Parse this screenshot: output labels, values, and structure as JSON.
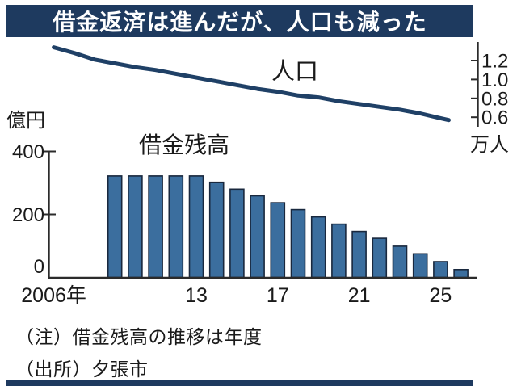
{
  "title": "借金返済は進んだが、人口も減った",
  "colors": {
    "title_bar": "#1E3A5F",
    "title_text": "#FFFFFF",
    "bar_fill": "#3B6E9E",
    "bar_stroke": "#19283E",
    "line": "#1F4066",
    "axis": "#2B2B2B",
    "text": "#1A1A1A",
    "background": "#FFFFFF"
  },
  "chart_data": {
    "type": "combo",
    "series": [
      {
        "type": "line",
        "name": "population",
        "label": "人口",
        "unit": "万人",
        "axis": "right",
        "x": [
          2006,
          2007,
          2008,
          2009,
          2010,
          2011,
          2012,
          2013,
          2014,
          2015,
          2016,
          2017,
          2018,
          2019,
          2020,
          2021,
          2022,
          2023,
          2024,
          2025,
          2025.4
        ],
        "values": [
          1.34,
          1.28,
          1.21,
          1.17,
          1.13,
          1.1,
          1.06,
          1.02,
          0.98,
          0.94,
          0.9,
          0.87,
          0.83,
          0.81,
          0.77,
          0.74,
          0.71,
          0.68,
          0.64,
          0.59,
          0.57
        ]
      },
      {
        "type": "bar",
        "name": "debt-balance",
        "label": "借金残高",
        "unit": "億円",
        "axis": "left",
        "x": [
          2009,
          2010,
          2011,
          2012,
          2013,
          2014,
          2015,
          2016,
          2017,
          2018,
          2019,
          2020,
          2021,
          2022,
          2023,
          2024,
          2025,
          2026
        ],
        "values": [
          322,
          322,
          322,
          322,
          322,
          302,
          280,
          259,
          237,
          215,
          192,
          169,
          146,
          124,
          99,
          75,
          50,
          25
        ]
      }
    ],
    "left_axis": {
      "label": "億円",
      "ticks": [
        400,
        200,
        0
      ],
      "range": [
        0,
        430
      ]
    },
    "right_axis": {
      "label": "万人",
      "ticks": [
        "1.2",
        "1.0",
        "0.8",
        "0.6"
      ]
    },
    "x_axis": {
      "tick_labels": [
        "2006年",
        "13",
        "17",
        "21",
        "25"
      ],
      "tick_years": [
        2006,
        2013,
        2017,
        2021,
        2025
      ]
    }
  },
  "notes": {
    "note1": "（注）借金残高の推移は年度",
    "note2": "（出所）夕張市"
  }
}
